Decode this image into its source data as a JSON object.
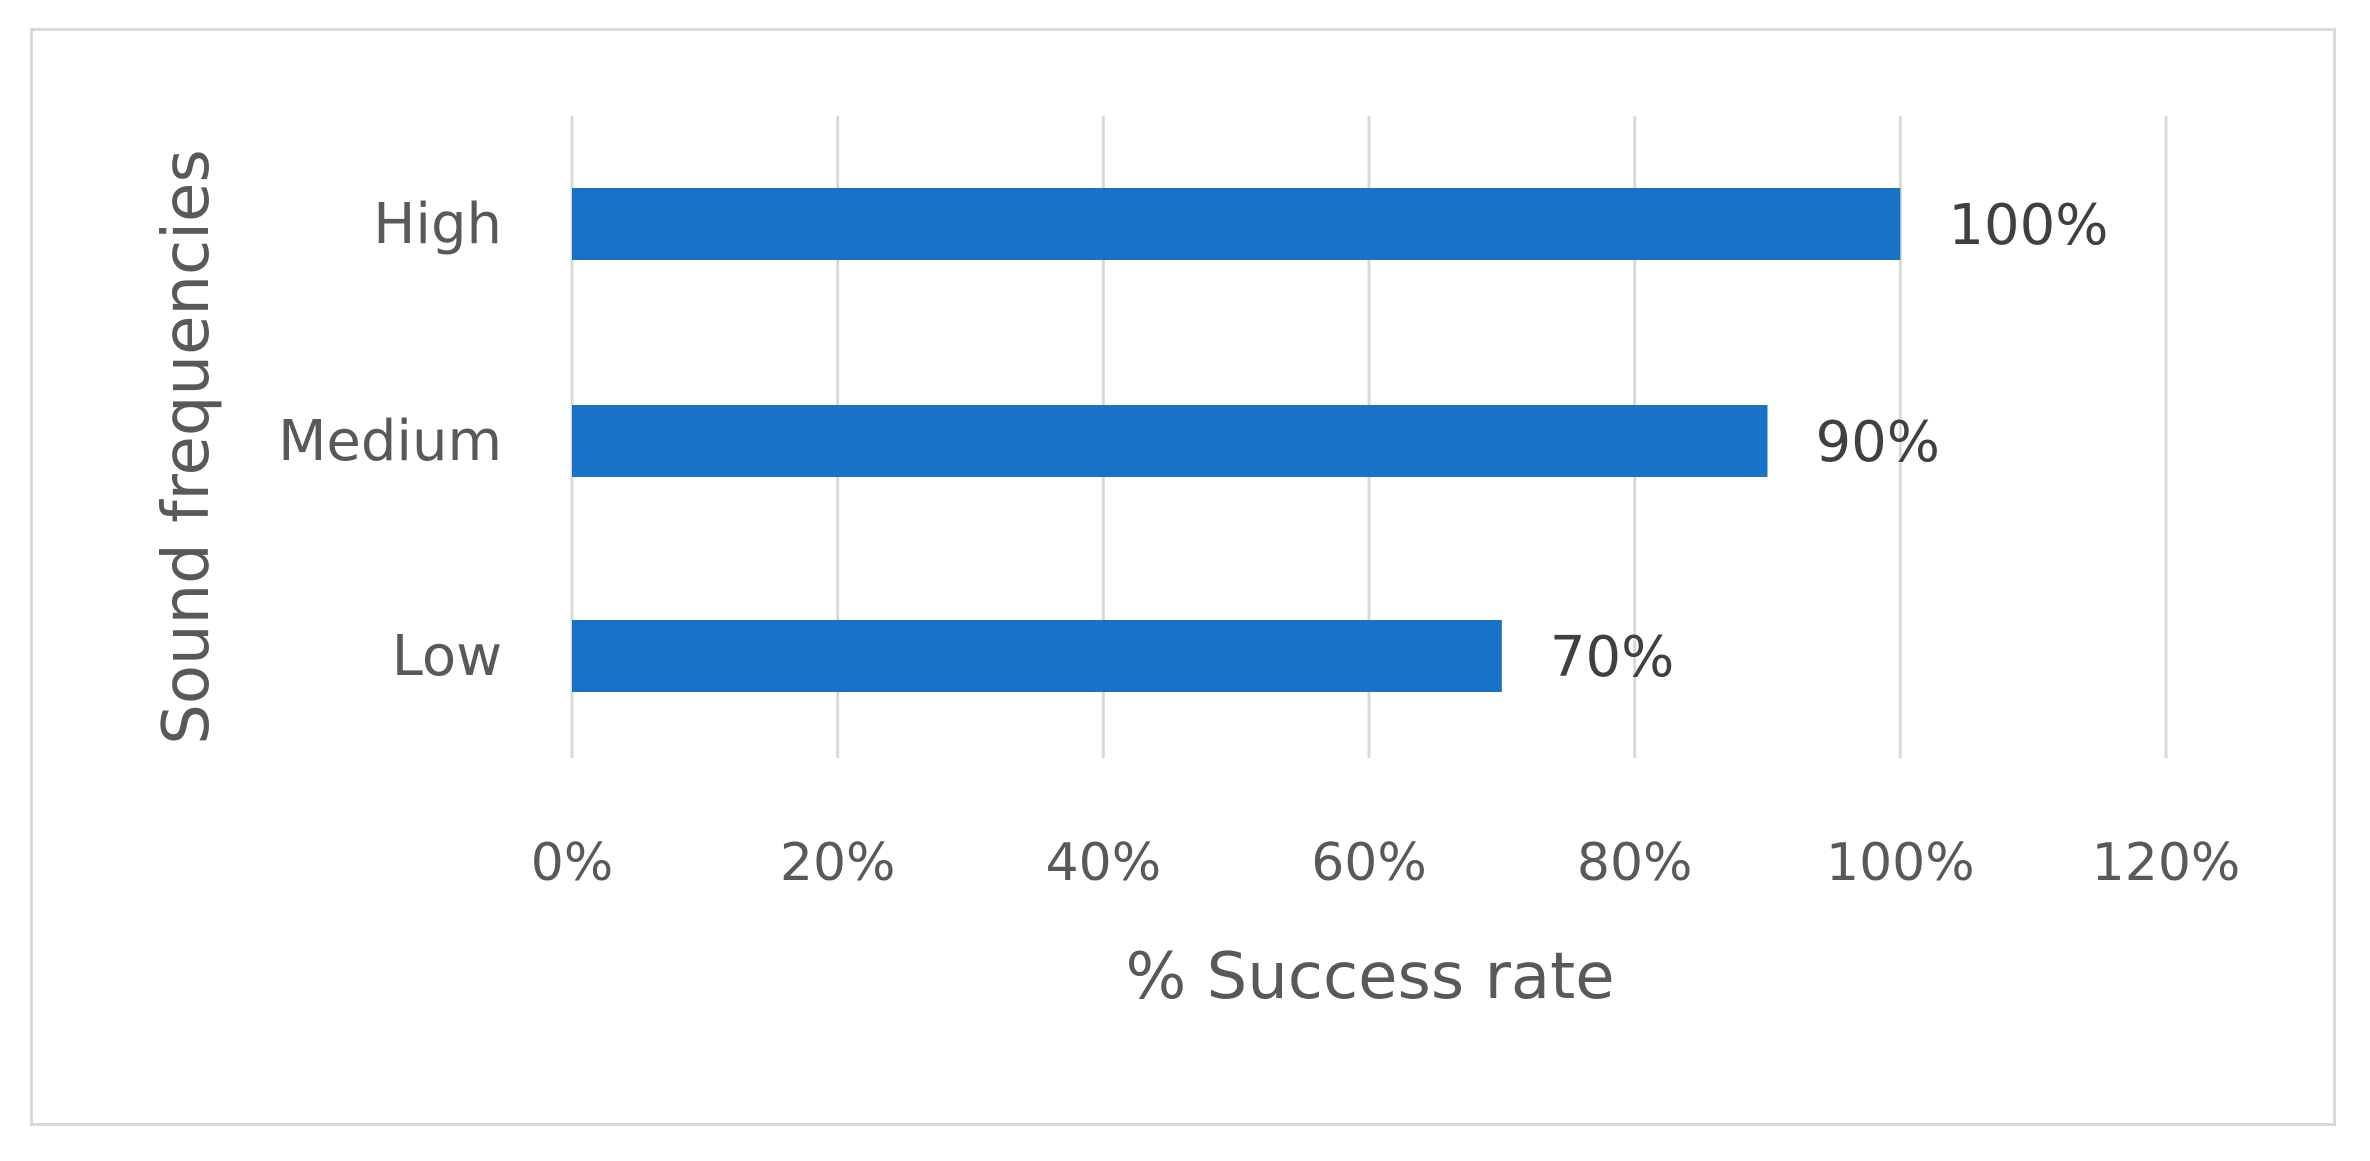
{
  "chart_data": {
    "type": "bar",
    "orientation": "horizontal",
    "categories": [
      "High",
      "Medium",
      "Low"
    ],
    "values": [
      100,
      90,
      70
    ],
    "data_labels": [
      "100%",
      "90%",
      "70%"
    ],
    "xlabel": "% Success rate",
    "ylabel": "Sound frequencies",
    "xlim": [
      0,
      120
    ],
    "x_ticks": [
      0,
      20,
      40,
      60,
      80,
      100,
      120
    ],
    "x_tick_labels": [
      "0%",
      "20%",
      "40%",
      "60%",
      "80%",
      "100%",
      "120%"
    ],
    "grid": "vertical",
    "legend": "none",
    "bar_color": "#1872C6",
    "grid_color": "#d9d9d9"
  }
}
